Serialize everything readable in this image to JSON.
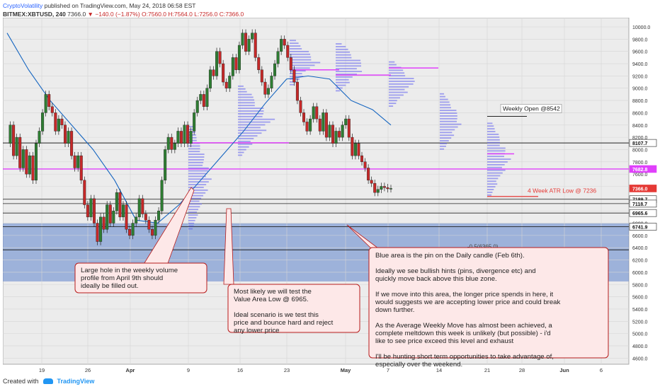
{
  "header": {
    "author": "CryptoVolatility",
    "published": "published on TradingView.com, May 24, 2018 06:58 EST",
    "symbol": "BITMEX:XBTUSD, 240",
    "last": "7366.0",
    "change": "−140.0 (−1.87%)",
    "ohlc": "O:7560.0 H:7564.0 L:7256.0 C:7366.0"
  },
  "footer": {
    "created_with": "Created with",
    "brand": "TradingView"
  },
  "colors": {
    "price_line": "#e040fb",
    "ma_line": "#1565c0",
    "volume_profile": "#5c5cf0",
    "blue_zone": "#5c84cc",
    "atr_line": "#e53935",
    "bull_candle": "#2e7d32",
    "bear_candle": "#c62828",
    "annotation_border": "#b71c1c"
  },
  "chart_data": {
    "type": "line",
    "title": "",
    "xlabel": "",
    "ylabel": "",
    "ylim": [
      4500,
      10150
    ],
    "x_ticks": [
      "19",
      "26",
      "Apr",
      "9",
      "16",
      "23",
      "May",
      "7",
      "14",
      "21",
      "28",
      "Jun",
      "6"
    ],
    "y_ticks": [
      4600,
      4800,
      5000,
      5200,
      5400,
      5600,
      5800,
      6000,
      6200,
      6400,
      6600,
      6800,
      7000,
      7200,
      7400,
      7600,
      7800,
      8000,
      8200,
      8400,
      8600,
      8800,
      9000,
      9200,
      9400,
      9600,
      9800,
      10000
    ],
    "grid": true,
    "series": [
      {
        "kind": "price",
        "x": [
          0,
          6,
          12,
          18,
          24,
          30,
          36,
          42,
          48,
          54,
          60,
          66,
          72,
          78,
          84,
          90,
          96,
          102,
          108,
          114,
          120,
          126,
          132,
          138,
          144,
          150,
          156,
          162,
          168,
          174,
          180,
          186,
          192,
          198,
          204,
          210,
          216,
          222,
          228,
          234,
          240,
          246,
          252,
          258,
          264,
          270,
          276,
          282,
          288,
          294,
          300,
          306,
          312,
          318,
          324,
          330,
          336,
          342,
          348,
          354,
          360,
          366,
          372,
          378,
          384,
          390,
          396,
          402,
          408,
          414,
          420,
          426,
          432,
          438,
          444,
          450,
          456,
          462,
          468,
          474,
          480,
          486,
          492,
          498,
          504,
          510,
          516,
          522,
          528,
          534,
          540,
          546,
          552,
          558,
          564,
          570,
          576,
          582,
          588,
          594,
          600,
          606,
          612,
          618,
          624,
          630,
          636,
          642,
          648,
          654,
          660,
          666,
          672,
          678,
          684,
          690,
          696,
          702,
          708,
          714
        ],
        "values": [
          8100,
          8400,
          7900,
          8200,
          7700,
          8000,
          7600,
          7900,
          7500,
          8100,
          8300,
          8600,
          8900,
          8700,
          8600,
          8300,
          8500,
          8400,
          8100,
          8300,
          7900,
          7700,
          7900,
          7500,
          7100,
          6900,
          7200,
          6800,
          6500,
          6900,
          6700,
          7100,
          6800,
          7000,
          7300,
          6900,
          7100,
          6700,
          6600,
          6800,
          6900,
          7200,
          6950,
          6850,
          6700,
          6600,
          6850,
          7000,
          7500,
          8000,
          8200,
          8000,
          8100,
          8300,
          8100,
          8400,
          8100,
          8300,
          8600,
          8800,
          8900,
          8700,
          9000,
          9300,
          9200,
          9600,
          9400,
          9100,
          9000,
          9200,
          9500,
          9300,
          9700,
          9900,
          9600,
          9800,
          9900,
          9500,
          9300,
          9100,
          8900,
          9000,
          9200,
          9400,
          9600,
          9800,
          9700,
          9500,
          9300,
          9100,
          8800,
          8600,
          8450,
          8300,
          8500,
          8700,
          8500,
          8300,
          8600,
          8200,
          8400,
          8100,
          8300,
          8200,
          8400,
          8500,
          8200,
          7900,
          8100,
          7900,
          7800,
          7700,
          7500,
          7450,
          7300,
          7350,
          7400,
          7380,
          7360,
          7366
        ]
      },
      {
        "kind": "moving_average",
        "x": [
          0,
          40,
          80,
          120,
          160,
          200,
          240,
          280,
          320,
          360,
          400,
          440,
          480,
          520,
          560,
          600,
          640,
          680,
          714
        ],
        "values": [
          9900,
          9300,
          8800,
          8400,
          8000,
          7500,
          6850,
          6800,
          7100,
          7500,
          7900,
          8300,
          8750,
          9150,
          9200,
          9150,
          8800,
          8650,
          8400
        ]
      }
    ],
    "price_labels": [
      {
        "value": 10000,
        "text": "10000.0"
      },
      {
        "value": 8107.7,
        "text": "8107.7"
      },
      {
        "value": 7682.8,
        "text": "7682.8"
      },
      {
        "value": 7366.0,
        "text": "7366.0"
      },
      {
        "value": 7189.7,
        "text": "7189.7"
      },
      {
        "value": 7118.7,
        "text": "7118.7"
      },
      {
        "value": 6965.6,
        "text": "6965.6"
      },
      {
        "value": 6741.9,
        "text": "6741.9"
      }
    ],
    "blue_zone": {
      "from": 5850,
      "to": 6800
    },
    "annotations": {
      "weekly_open": "Weekly Open @8542",
      "atr_low": "4 Week ATR Low @ 7236",
      "fib": "-0.5(6365.0)",
      "box1": "Large hole in the weekly volume profile from April 9th should ideally be filled out.",
      "box2_p1": "Most likely we will test the Value Area Low @ 6965.",
      "box2_p2": "Ideal scenario is we test this price and bounce hard and reject any lower price",
      "box3_p1": "Blue area is the pin on the Daily candle (Feb 6th).",
      "box3_p2": "Ideally we see bullish hints (pins, divergence etc) and quickly move back above this blue zone.",
      "box3_p3": "If we move into this area, the longer price spends in here, it would suggests we are accepting lower price and could break down further.",
      "box3_p4": "As the Average Weekly Move has almost been achieved, a complete meltdown this week is unlikely (but possible) - i'd like to see price exceed this level and exhaust",
      "box3_p5": "I'll be hunting short term opportunities to take advantage of, especially over the weekend."
    }
  }
}
